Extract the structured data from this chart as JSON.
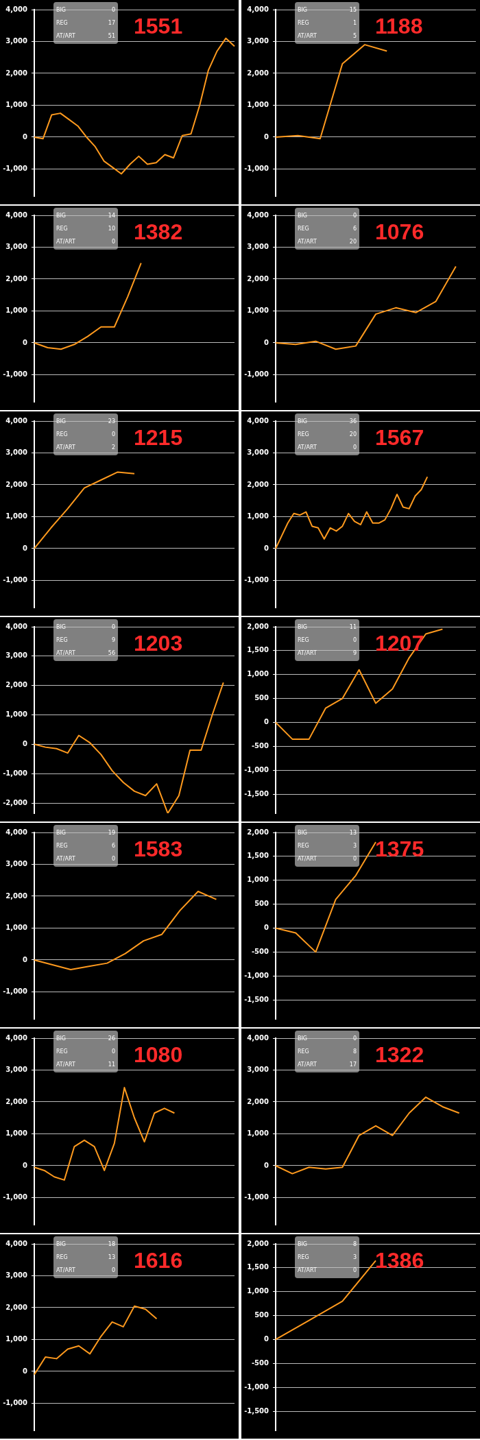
{
  "chart_data": [
    {
      "type": "line",
      "title": "1551",
      "annotations": [
        "BIG",
        "0",
        "REG",
        "17",
        "AT/ART",
        "51"
      ],
      "color": "#ff9a1e",
      "grid": "y",
      "tick_labels": "y",
      "ylim": [
        -1850,
        4000
      ],
      "yticks": [
        {
          "value": -1000,
          "label": "-1,000"
        },
        0,
        {
          "value": 1000,
          "label": "1,000"
        },
        {
          "value": 2000,
          "label": "2,000"
        },
        {
          "value": 3000,
          "label": "3,000"
        },
        {
          "value": 4000,
          "label": "4,000"
        }
      ],
      "categories": [
        null,
        null,
        null,
        null,
        null,
        null,
        null,
        null,
        null,
        null,
        null,
        null,
        null,
        null,
        null,
        null,
        null,
        null,
        null,
        null,
        null,
        null,
        null,
        null
      ],
      "values": [
        0,
        -50,
        700,
        750,
        550,
        350,
        0,
        -300,
        -750,
        -950,
        -1150,
        -850,
        -600,
        -850,
        -800,
        -550,
        -650,
        50,
        100,
        1000,
        2100,
        2700,
        3100,
        2850
      ]
    },
    {
      "type": "line",
      "title": "1188",
      "annotations": [
        "BIG",
        "15",
        "REG",
        "1",
        "AT/ART",
        "5"
      ],
      "color": "#ff9a1e",
      "grid": "y",
      "tick_labels": "y",
      "ylim": [
        -1850,
        4000
      ],
      "yticks": [
        {
          "value": -1000,
          "label": "-1,000"
        },
        0,
        {
          "value": 1000,
          "label": "1,000"
        },
        {
          "value": 2000,
          "label": "2,000"
        },
        {
          "value": 3000,
          "label": "3,000"
        },
        {
          "value": 4000,
          "label": "4,000"
        }
      ],
      "categories": [
        null,
        null,
        null,
        null,
        null,
        null,
        null,
        null,
        null,
        null
      ],
      "values": [
        0,
        50,
        -50,
        2300,
        2900,
        2700,
        null,
        null,
        null,
        null
      ]
    },
    {
      "type": "line",
      "title": "1382",
      "annotations": [
        "BIG",
        "14",
        "REG",
        "10",
        "AT/ART",
        "0"
      ],
      "color": "#ff9a1e",
      "grid": "y",
      "tick_labels": "y",
      "ylim": [
        -1850,
        4000
      ],
      "yticks": [
        {
          "value": -1000,
          "label": "-1,000"
        },
        0,
        {
          "value": 1000,
          "label": "1,000"
        },
        {
          "value": 2000,
          "label": "2,000"
        },
        {
          "value": 3000,
          "label": "3,000"
        },
        {
          "value": 4000,
          "label": "4,000"
        }
      ],
      "categories": [
        null,
        null,
        null,
        null,
        null,
        null,
        null,
        null,
        null,
        null,
        null,
        null,
        null,
        null,
        null,
        null
      ],
      "values": [
        0,
        -150,
        -200,
        -50,
        200,
        500,
        500,
        1450,
        2500,
        null,
        null,
        null,
        null,
        null,
        null,
        null
      ]
    },
    {
      "type": "line",
      "title": "1076",
      "annotations": [
        "BIG",
        "0",
        "REG",
        "6",
        "AT/ART",
        "20"
      ],
      "color": "#ff9a1e",
      "grid": "y",
      "tick_labels": "y",
      "ylim": [
        -1850,
        4000
      ],
      "yticks": [
        {
          "value": -1000,
          "label": "-1,000"
        },
        0,
        {
          "value": 1000,
          "label": "1,000"
        },
        {
          "value": 2000,
          "label": "2,000"
        },
        {
          "value": 3000,
          "label": "3,000"
        },
        {
          "value": 4000,
          "label": "4,000"
        }
      ],
      "categories": [
        null,
        null,
        null,
        null,
        null,
        null,
        null,
        null,
        null,
        null,
        null
      ],
      "values": [
        0,
        -50,
        50,
        -200,
        -100,
        900,
        1100,
        950,
        1300,
        2400,
        null
      ]
    },
    {
      "type": "line",
      "title": "1215",
      "annotations": [
        "BIG",
        "23",
        "REG",
        "0",
        "AT/ART",
        "2"
      ],
      "color": "#ff9a1e",
      "grid": "y",
      "tick_labels": "y",
      "ylim": [
        -1850,
        4000
      ],
      "yticks": [
        {
          "value": -1000,
          "label": "-1,000"
        },
        0,
        {
          "value": 1000,
          "label": "1,000"
        },
        {
          "value": 2000,
          "label": "2,000"
        },
        {
          "value": 3000,
          "label": "3,000"
        },
        {
          "value": 4000,
          "label": "4,000"
        }
      ],
      "categories": [
        null,
        null,
        null,
        null,
        null,
        null,
        null,
        null,
        null,
        null,
        null,
        null,
        null
      ],
      "values": [
        0,
        650,
        1250,
        1900,
        2150,
        2400,
        2350,
        null,
        null,
        null,
        null,
        null,
        null
      ]
    },
    {
      "type": "line",
      "title": "1567",
      "annotations": [
        "BIG",
        "36",
        "REG",
        "20",
        "AT/ART",
        "0"
      ],
      "color": "#ff9a1e",
      "grid": "y",
      "tick_labels": "y",
      "ylim": [
        -1850,
        4000
      ],
      "yticks": [
        {
          "value": -1000,
          "label": "-1,000"
        },
        0,
        {
          "value": 1000,
          "label": "1,000"
        },
        {
          "value": 2000,
          "label": "2,000"
        },
        {
          "value": 3000,
          "label": "3,000"
        },
        {
          "value": 4000,
          "label": "4,000"
        }
      ],
      "categories": [
        null,
        null,
        null,
        null,
        null,
        null,
        null,
        null,
        null,
        null,
        null,
        null,
        null,
        null,
        null,
        null,
        null,
        null,
        null,
        null,
        null,
        null,
        null,
        null,
        null,
        null,
        null,
        null,
        null,
        null,
        null,
        null,
        null,
        null
      ],
      "values": [
        0,
        400,
        800,
        1100,
        1050,
        1150,
        700,
        650,
        300,
        650,
        550,
        700,
        1100,
        850,
        750,
        1150,
        800,
        800,
        900,
        1250,
        1700,
        1300,
        1250,
        1650,
        1850,
        2250,
        null,
        null,
        null,
        null,
        null,
        null,
        null,
        null
      ]
    },
    {
      "type": "line",
      "title": "1203",
      "annotations": [
        "BIG",
        "0",
        "REG",
        "9",
        "AT/ART",
        "56"
      ],
      "color": "#ff9a1e",
      "grid": "y",
      "tick_labels": "y",
      "ylim": [
        -2350,
        4000
      ],
      "yticks": [
        {
          "value": -2000,
          "label": "-2,000"
        },
        {
          "value": -1000,
          "label": "-1,000"
        },
        0,
        {
          "value": 1000,
          "label": "1,000"
        },
        {
          "value": 2000,
          "label": "2,000"
        },
        {
          "value": 3000,
          "label": "3,000"
        },
        {
          "value": 4000,
          "label": "4,000"
        }
      ],
      "categories": [
        null,
        null,
        null,
        null,
        null,
        null,
        null,
        null,
        null,
        null,
        null,
        null,
        null,
        null,
        null,
        null,
        null,
        null,
        null
      ],
      "values": [
        0,
        -100,
        -150,
        -300,
        300,
        50,
        -350,
        -900,
        -1300,
        -1600,
        -1750,
        -1350,
        -2350,
        -1750,
        -200,
        -200,
        1000,
        2100,
        null
      ]
    },
    {
      "type": "line",
      "title": "1207",
      "annotations": [
        "BIG",
        "11",
        "REG",
        "0",
        "AT/ART",
        "9"
      ],
      "color": "#ff9a1e",
      "grid": "y",
      "tick_labels": "y",
      "ylim": [
        -1900,
        2000
      ],
      "yticks": [
        {
          "value": -1500,
          "label": "-1,500"
        },
        {
          "value": -1000,
          "label": "-1,000"
        },
        -500,
        0,
        500,
        {
          "value": 1000,
          "label": "1,000"
        },
        {
          "value": 1500,
          "label": "1,500"
        },
        {
          "value": 2000,
          "label": "2,000"
        }
      ],
      "categories": [
        null,
        null,
        null,
        null,
        null,
        null,
        null,
        null,
        null,
        null,
        null,
        null,
        null
      ],
      "values": [
        0,
        -350,
        -350,
        300,
        500,
        1100,
        400,
        700,
        1350,
        1850,
        1950,
        null,
        null
      ]
    },
    {
      "type": "line",
      "title": "1583",
      "annotations": [
        "BIG",
        "19",
        "REG",
        "6",
        "AT/ART",
        "0"
      ],
      "color": "#ff9a1e",
      "grid": "y",
      "tick_labels": "y",
      "ylim": [
        -1850,
        4000
      ],
      "yticks": [
        {
          "value": -1000,
          "label": "-1,000"
        },
        0,
        {
          "value": 1000,
          "label": "1,000"
        },
        {
          "value": 2000,
          "label": "2,000"
        },
        {
          "value": 3000,
          "label": "3,000"
        },
        {
          "value": 4000,
          "label": "4,000"
        }
      ],
      "categories": [
        null,
        null,
        null,
        null,
        null,
        null,
        null,
        null,
        null,
        null,
        null,
        null
      ],
      "values": [
        0,
        -150,
        -300,
        -200,
        -100,
        200,
        600,
        800,
        1550,
        2150,
        1900,
        null
      ]
    },
    {
      "type": "line",
      "title": "1375",
      "annotations": [
        "BIG",
        "13",
        "REG",
        "3",
        "AT/ART",
        "0"
      ],
      "color": "#ff9a1e",
      "grid": "y",
      "tick_labels": "y",
      "ylim": [
        -1900,
        2000
      ],
      "yticks": [
        {
          "value": -1500,
          "label": "-1,500"
        },
        {
          "value": -1000,
          "label": "-1,000"
        },
        -500,
        0,
        500,
        {
          "value": 1000,
          "label": "1,000"
        },
        {
          "value": 1500,
          "label": "1,500"
        },
        {
          "value": 2000,
          "label": "2,000"
        }
      ],
      "categories": [
        null,
        null,
        null,
        null,
        null,
        null,
        null,
        null,
        null,
        null,
        null
      ],
      "values": [
        0,
        -100,
        -500,
        600,
        1100,
        1800,
        null,
        null,
        null,
        null,
        null
      ]
    },
    {
      "type": "line",
      "title": "1080",
      "annotations": [
        "BIG",
        "26",
        "REG",
        "0",
        "AT/ART",
        "11"
      ],
      "color": "#ff9a1e",
      "grid": "y",
      "tick_labels": "y",
      "ylim": [
        -1850,
        4000
      ],
      "yticks": [
        {
          "value": -1000,
          "label": "-1,000"
        },
        0,
        {
          "value": 1000,
          "label": "1,000"
        },
        {
          "value": 2000,
          "label": "2,000"
        },
        {
          "value": 3000,
          "label": "3,000"
        },
        {
          "value": 4000,
          "label": "4,000"
        }
      ],
      "categories": [
        null,
        null,
        null,
        null,
        null,
        null,
        null,
        null,
        null,
        null,
        null,
        null,
        null,
        null,
        null,
        null,
        null,
        null,
        null,
        null,
        null
      ],
      "values": [
        -50,
        -150,
        -350,
        -450,
        600,
        800,
        600,
        -150,
        700,
        2450,
        1500,
        750,
        1650,
        1800,
        1650,
        null,
        null,
        null,
        null,
        null,
        null
      ]
    },
    {
      "type": "line",
      "title": "1322",
      "annotations": [
        "BIG",
        "0",
        "REG",
        "8",
        "AT/ART",
        "17"
      ],
      "color": "#ff9a1e",
      "grid": "y",
      "tick_labels": "y",
      "ylim": [
        -1850,
        4000
      ],
      "yticks": [
        {
          "value": -1000,
          "label": "-1,000"
        },
        0,
        {
          "value": 1000,
          "label": "1,000"
        },
        {
          "value": 2000,
          "label": "2,000"
        },
        {
          "value": 3000,
          "label": "3,000"
        },
        {
          "value": 4000,
          "label": "4,000"
        }
      ],
      "categories": [
        null,
        null,
        null,
        null,
        null,
        null,
        null,
        null,
        null,
        null,
        null,
        null,
        null
      ],
      "values": [
        0,
        -250,
        -50,
        -100,
        -50,
        950,
        1250,
        950,
        1650,
        2150,
        1850,
        1650,
        null
      ]
    },
    {
      "type": "line",
      "title": "1616",
      "annotations": [
        "BIG",
        "18",
        "REG",
        "13",
        "AT/ART",
        "0"
      ],
      "color": "#ff9a1e",
      "grid": "y",
      "tick_labels": "y",
      "ylim": [
        -1850,
        4000
      ],
      "yticks": [
        {
          "value": -1000,
          "label": "-1,000"
        },
        0,
        {
          "value": 1000,
          "label": "1,000"
        },
        {
          "value": 2000,
          "label": "2,000"
        },
        {
          "value": 3000,
          "label": "3,000"
        },
        {
          "value": 4000,
          "label": "4,000"
        }
      ],
      "categories": [
        null,
        null,
        null,
        null,
        null,
        null,
        null,
        null,
        null,
        null,
        null,
        null,
        null,
        null,
        null,
        null,
        null,
        null,
        null
      ],
      "values": [
        -100,
        450,
        400,
        700,
        800,
        550,
        1100,
        1550,
        1400,
        2050,
        1950,
        1650,
        null,
        null,
        null,
        null,
        null,
        null,
        null
      ]
    },
    {
      "type": "line",
      "title": "1386",
      "annotations": [
        "BIG",
        "8",
        "REG",
        "3",
        "AT/ART",
        "0"
      ],
      "color": "#ff9a1e",
      "grid": "y",
      "tick_labels": "y",
      "ylim": [
        -1900,
        2000
      ],
      "yticks": [
        {
          "value": -1500,
          "label": "-1,500"
        },
        {
          "value": -1000,
          "label": "-1,000"
        },
        -500,
        0,
        500,
        {
          "value": 1000,
          "label": "1,000"
        },
        {
          "value": 1500,
          "label": "1,500"
        },
        {
          "value": 2000,
          "label": "2,000"
        }
      ],
      "categories": [
        null,
        null,
        null,
        null,
        null,
        null,
        null
      ],
      "values": [
        0,
        400,
        800,
        1650,
        null,
        null,
        null
      ]
    }
  ]
}
